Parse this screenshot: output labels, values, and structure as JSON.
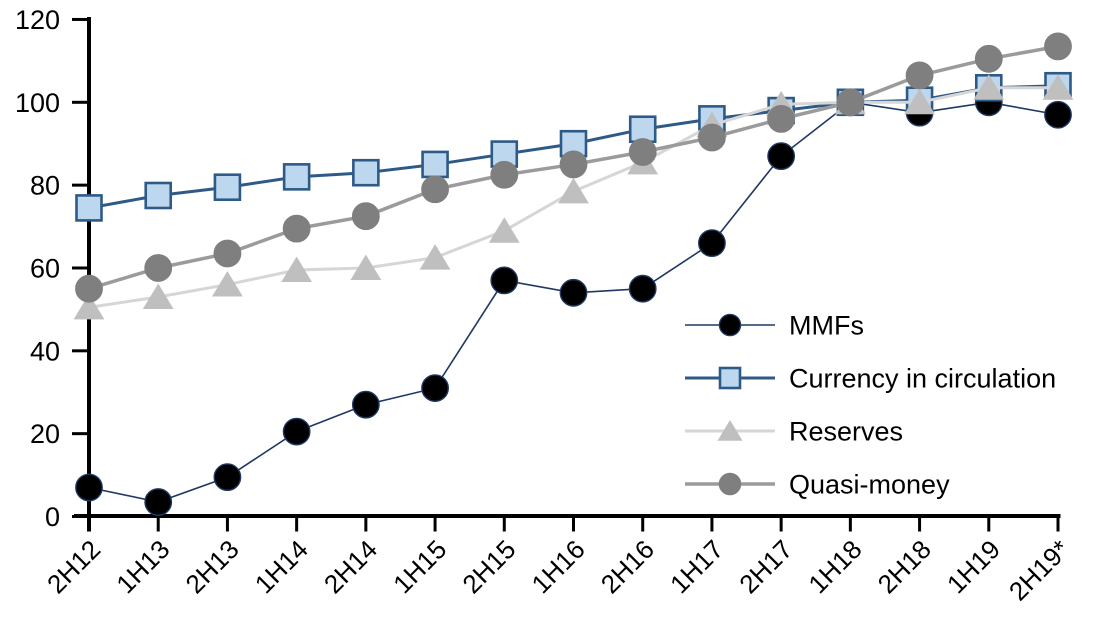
{
  "chart_data": {
    "type": "line",
    "title": "",
    "xlabel": "",
    "ylabel": "",
    "ylim": [
      0,
      120
    ],
    "yticks": [
      0,
      20,
      40,
      60,
      80,
      100,
      120
    ],
    "grid": false,
    "legend_position": "inside-right",
    "categories": [
      "2H12",
      "1H13",
      "2H13",
      "1H14",
      "2H14",
      "1H15",
      "2H15",
      "1H16",
      "2H16",
      "1H17",
      "2H17",
      "1H18",
      "2H18",
      "1H19",
      "2H19*"
    ],
    "series": [
      {
        "name": "MMFs",
        "marker": "circle",
        "marker_fill": "#000000",
        "marker_stroke": "#1F3864",
        "line_color": "#1F3864",
        "line_width": 1.6,
        "values": [
          7,
          3.5,
          9.5,
          20.5,
          27,
          31,
          57,
          54,
          55,
          66,
          87,
          100,
          97.5,
          100,
          97
        ]
      },
      {
        "name": "Currency in circulation",
        "marker": "square",
        "marker_fill": "#BDD7EE",
        "marker_stroke": "#2E5A87",
        "line_color": "#2E5A87",
        "line_width": 3,
        "values": [
          74.5,
          77.5,
          79.5,
          82,
          83,
          85,
          87.5,
          90,
          93.5,
          96,
          98,
          100,
          100.5,
          103.5,
          104
        ]
      },
      {
        "name": "Reserves",
        "marker": "triangle",
        "marker_fill": "#BFBFBF",
        "marker_stroke": "#BFBFBF",
        "line_color": "#D6D6D6",
        "line_width": 3,
        "values": [
          50.5,
          53,
          56,
          59.5,
          60,
          62.5,
          69,
          78.5,
          85.5,
          94.5,
          99.5,
          100,
          100,
          103.5,
          103.5
        ]
      },
      {
        "name": "Quasi-money",
        "marker": "circle",
        "marker_fill": "#7F7F7F",
        "marker_stroke": "#7F7F7F",
        "line_color": "#9B9B9B",
        "line_width": 3.5,
        "values": [
          55,
          60,
          63.5,
          69.5,
          72.5,
          79,
          82.5,
          85,
          88,
          91.5,
          96,
          100,
          106.5,
          110.5,
          113.5
        ]
      }
    ]
  },
  "colors": {
    "axis": "#000000",
    "text": "#000000",
    "background": "#FFFFFF"
  }
}
